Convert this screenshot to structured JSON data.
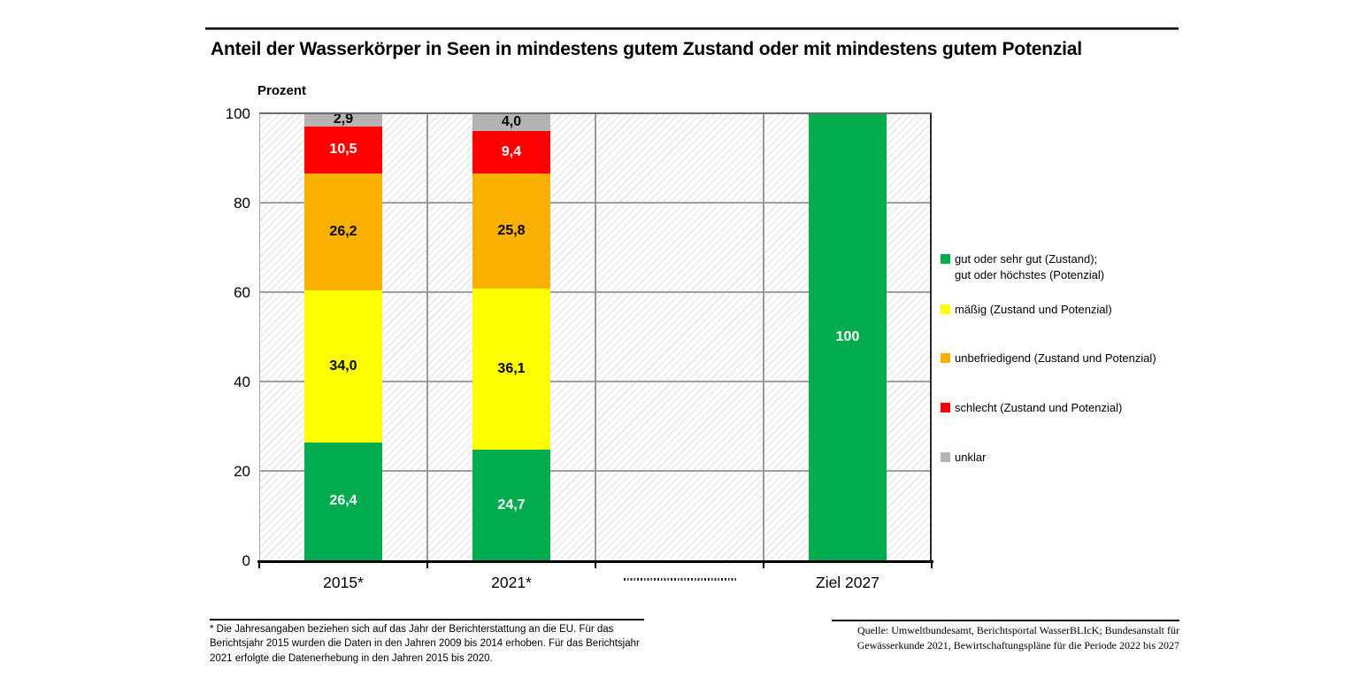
{
  "header": {
    "title": "Anteil der Wasserkörper in Seen in mindestens gutem Zustand oder mit mindestens gutem Potenzial"
  },
  "chart_data": {
    "type": "bar",
    "stacked": true,
    "title": "Anteil der Wasserkörper in Seen in mindestens gutem Zustand oder mit mindestens gutem Potenzial",
    "xlabel": "",
    "ylabel": "Prozent",
    "ylim": [
      0,
      100
    ],
    "yticks": [
      0,
      20,
      40,
      60,
      80,
      100
    ],
    "grid": true,
    "background_hatch": true,
    "legend_position": "right",
    "categories": [
      "2015*",
      "2021*",
      "",
      "Ziel 2027"
    ],
    "axis_break_slot": 2,
    "series": [
      {
        "name": "gut oder sehr gut (Zustand);\ngut oder höchstes (Potenzial)",
        "color": "#00AC4E",
        "label_color": "#FFFFFF",
        "values": [
          26.4,
          24.7,
          null,
          100
        ],
        "value_labels": [
          "26,4",
          "24,7",
          "",
          "100"
        ]
      },
      {
        "name": "mäßig (Zustand und Potenzial)",
        "color": "#FFFF00",
        "label_color": "#000000",
        "values": [
          34.0,
          36.1,
          null,
          null
        ],
        "value_labels": [
          "34,0",
          "36,1",
          "",
          ""
        ]
      },
      {
        "name": "unbefriedigend (Zustand und Potenzial)",
        "color": "#F9B000",
        "label_color": "#000000",
        "values": [
          26.2,
          25.8,
          null,
          null
        ],
        "value_labels": [
          "26,2",
          "25,8",
          "",
          ""
        ]
      },
      {
        "name": "schlecht (Zustand und Potenzial)",
        "color": "#FE0000",
        "label_color": "#FFFFFF",
        "values": [
          10.5,
          9.4,
          null,
          null
        ],
        "value_labels": [
          "10,5",
          "9,4",
          "",
          ""
        ]
      },
      {
        "name": "unklar",
        "color": "#B4B4B4",
        "label_color": "#000000",
        "values": [
          2.9,
          4.0,
          null,
          null
        ],
        "value_labels": [
          "2,9",
          "4,0",
          "",
          ""
        ]
      }
    ]
  },
  "footnotes": {
    "note": "* Die Jahresangaben beziehen sich auf das Jahr der Berichterstattung an die EU. Für das\nBerichtsjahr 2015 wurden die Daten in den Jahren 2009 bis 2014 erhoben. Für das Berichtsjahr\n2021 erfolgte die Datenerhebung in den Jahren 2015 bis 2020.",
    "source": "Quelle: Umweltbundesamt, Berichtsportal WasserBLIcK; Bundesanstalt für\nGewässerkunde 2021, Bewirtschaftungspläne für die Periode 2022 bis 2027"
  }
}
